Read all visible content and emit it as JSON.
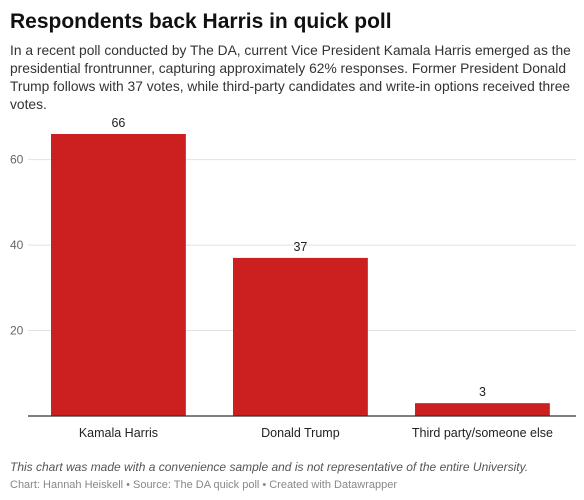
{
  "header": {
    "title": "Respondents back Harris in quick poll",
    "subtitle": "In a recent poll conducted by The DA, current Vice President Kamala Harris emerged as the presidential frontrunner, capturing approximately 62% responses. Former President Donald Trump follows with 37 votes, while third-party candidates and write-in options received three votes."
  },
  "footer": {
    "note": "This chart was made with a convenience sample and is not representative of the entire University.",
    "chart_by": "Chart: Hannah Heiskell",
    "source": "Source: The DA quick poll",
    "created_with": "Created with Datawrapper",
    "separator": "•"
  },
  "colors": {
    "bar": "#cc1f1f",
    "grid": "#e2e2e2",
    "axis": "#333333",
    "tick_label": "#666666"
  },
  "chart_data": {
    "type": "bar",
    "categories": [
      "Kamala Harris",
      "Donald Trump",
      "Third party/someone else"
    ],
    "values": [
      66,
      37,
      3
    ],
    "title": "Respondents back Harris in quick poll",
    "xlabel": "",
    "ylabel": "",
    "ylim": [
      0,
      70
    ],
    "yticks": [
      20,
      40,
      60
    ],
    "grid": true,
    "data_labels": true
  }
}
